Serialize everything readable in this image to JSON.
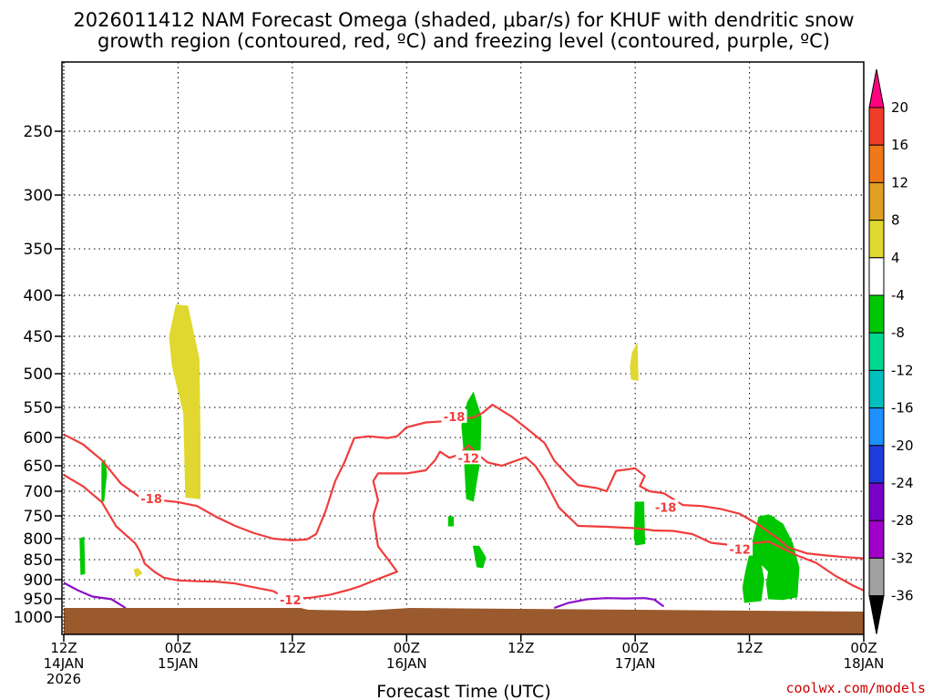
{
  "chart_data": {
    "type": "heatmap",
    "title_lines": [
      "2026011412 NAM Forecast Omega (shaded, μbar/s) for KHUF with dendritic snow",
      "growth region (contoured, red, ºC) and freezing level (contoured, purple, ºC)"
    ],
    "xlabel": "Forecast Time (UTC)",
    "credit": "coolwx.com/models",
    "x_range_hours": [
      0,
      84
    ],
    "y_axis": {
      "scale": "pressure",
      "range_hpa": [
        1000,
        200
      ],
      "ticks": [
        "250",
        "300",
        "350",
        "400",
        "450",
        "500",
        "550",
        "600",
        "650",
        "700",
        "750",
        "800",
        "850",
        "900",
        "950",
        "1000"
      ]
    },
    "x_ticks": [
      {
        "hour": 0,
        "line1": "12Z",
        "line2": "14JAN",
        "line3": "2026"
      },
      {
        "hour": 12,
        "line1": "00Z",
        "line2": "15JAN",
        "line3": ""
      },
      {
        "hour": 24,
        "line1": "12Z",
        "line2": "",
        "line3": ""
      },
      {
        "hour": 36,
        "line1": "00Z",
        "line2": "16JAN",
        "line3": ""
      },
      {
        "hour": 48,
        "line1": "12Z",
        "line2": "",
        "line3": ""
      },
      {
        "hour": 60,
        "line1": "00Z",
        "line2": "17JAN",
        "line3": ""
      },
      {
        "hour": 72,
        "line1": "12Z",
        "line2": "",
        "line3": ""
      },
      {
        "hour": 84,
        "line1": "00Z",
        "line2": "18JAN",
        "line3": ""
      }
    ],
    "colorbar": {
      "labels": [
        "20",
        "16",
        "12",
        "8",
        "4",
        "-4",
        "-8",
        "-12",
        "-16",
        "-20",
        "-24",
        "-28",
        "-32",
        "-36"
      ],
      "colors": [
        "#ff0080",
        "#f03c28",
        "#f07818",
        "#e0a020",
        "#e0d830",
        "#ffffff",
        "#00c800",
        "#00d890",
        "#00c0c0",
        "#1e90ff",
        "#1e3cdc",
        "#7800c8",
        "#a000c8",
        "#a0a0a0",
        "#000000"
      ]
    },
    "contour_labels": [
      {
        "text": "-18",
        "hour": 9.2,
        "hpa": 715
      },
      {
        "text": "-12",
        "hour": 23.8,
        "hpa": 952
      },
      {
        "text": "-18",
        "hour": 41.0,
        "hpa": 565
      },
      {
        "text": "-12",
        "hour": 42.5,
        "hpa": 636
      },
      {
        "text": "-18",
        "hour": 63.2,
        "hpa": 732
      },
      {
        "text": "-12",
        "hour": 71.0,
        "hpa": 825
      }
    ],
    "contours": {
      "minus18": [
        [
          0,
          595
        ],
        [
          2,
          612
        ],
        [
          4,
          640
        ],
        [
          6,
          685
        ],
        [
          8,
          712
        ],
        [
          10,
          718
        ],
        [
          12,
          722
        ],
        [
          14,
          730
        ],
        [
          16,
          752
        ],
        [
          18,
          772
        ],
        [
          20,
          788
        ],
        [
          22,
          800
        ],
        [
          24,
          804
        ],
        [
          25.5,
          802
        ],
        [
          26.5,
          790
        ],
        [
          27.5,
          740
        ],
        [
          28.5,
          680
        ],
        [
          29.5,
          643
        ],
        [
          30.5,
          601
        ],
        [
          32,
          598
        ],
        [
          34,
          601
        ],
        [
          35,
          598
        ],
        [
          36,
          583
        ],
        [
          38,
          575
        ],
        [
          40,
          573
        ],
        [
          42,
          568
        ],
        [
          43,
          567
        ],
        [
          44,
          559
        ],
        [
          45,
          546
        ],
        [
          47,
          565
        ],
        [
          49,
          590
        ],
        [
          50.5,
          610
        ],
        [
          51.5,
          641
        ],
        [
          53,
          670
        ],
        [
          54,
          688
        ],
        [
          56,
          694
        ],
        [
          57,
          700
        ],
        [
          58,
          660
        ],
        [
          60,
          655
        ],
        [
          61,
          670
        ],
        [
          60.5,
          690
        ],
        [
          61.5,
          700
        ],
        [
          63,
          704
        ],
        [
          65,
          728
        ],
        [
          67,
          730
        ],
        [
          69,
          736
        ],
        [
          71,
          746
        ],
        [
          73,
          770
        ],
        [
          75,
          800
        ],
        [
          76,
          820
        ],
        [
          78,
          835
        ],
        [
          80,
          840
        ],
        [
          82,
          844
        ],
        [
          84,
          847
        ]
      ],
      "minus12": [
        [
          0,
          668
        ],
        [
          2,
          690
        ],
        [
          4,
          722
        ],
        [
          5.5,
          773
        ],
        [
          7.5,
          811
        ],
        [
          8,
          830
        ],
        [
          8.5,
          860
        ],
        [
          9.5,
          880
        ],
        [
          10.5,
          895
        ],
        [
          12,
          902
        ],
        [
          14,
          904
        ],
        [
          16,
          905
        ],
        [
          18,
          910
        ],
        [
          20,
          920
        ],
        [
          22,
          930
        ],
        [
          23,
          944
        ],
        [
          24,
          950
        ],
        [
          26,
          947
        ],
        [
          28,
          939
        ],
        [
          30,
          926
        ],
        [
          31,
          918
        ],
        [
          32.5,
          903
        ],
        [
          35,
          880
        ],
        [
          34,
          848
        ],
        [
          33,
          818
        ],
        [
          32.5,
          750
        ],
        [
          33,
          718
        ],
        [
          32.5,
          680
        ],
        [
          33,
          665
        ],
        [
          36,
          665
        ],
        [
          38,
          659
        ],
        [
          39,
          640
        ],
        [
          39.5,
          625
        ],
        [
          40.5,
          636
        ],
        [
          41.5,
          630
        ],
        [
          42.5,
          614
        ],
        [
          43.5,
          630
        ],
        [
          44.5,
          644
        ],
        [
          46,
          650
        ],
        [
          48.5,
          635
        ],
        [
          49.5,
          650
        ],
        [
          50.5,
          678
        ],
        [
          52,
          733
        ],
        [
          54,
          772
        ],
        [
          57,
          774
        ],
        [
          60,
          777
        ],
        [
          62,
          782
        ],
        [
          64,
          783
        ],
        [
          66,
          790
        ],
        [
          68,
          810
        ],
        [
          70,
          815
        ],
        [
          72,
          812
        ],
        [
          74,
          807
        ],
        [
          75,
          818
        ],
        [
          77,
          840
        ],
        [
          79,
          858
        ],
        [
          81,
          890
        ],
        [
          83,
          917
        ],
        [
          84,
          928
        ]
      ],
      "freezing_left": [
        [
          0,
          908
        ],
        [
          1.5,
          928
        ],
        [
          3,
          944
        ],
        [
          5,
          951
        ],
        [
          6.5,
          975
        ]
      ],
      "freezing_right": [
        [
          51.5,
          975
        ],
        [
          53,
          961
        ],
        [
          55,
          951
        ],
        [
          57,
          948
        ],
        [
          59,
          949
        ],
        [
          61,
          948
        ],
        [
          62,
          952
        ],
        [
          63,
          971
        ]
      ]
    },
    "omega_regions": [
      {
        "category": "4 to 8",
        "color": "#e0d830",
        "outline": [
          [
            11.8,
            412
          ],
          [
            13.0,
            413
          ],
          [
            14.2,
            480
          ],
          [
            14.3,
            590
          ],
          [
            14.3,
            715
          ],
          [
            12.8,
            712
          ],
          [
            12.6,
            560
          ],
          [
            11.4,
            490
          ],
          [
            11.1,
            450
          ]
        ]
      },
      {
        "category": "4 to 8",
        "color": "#e0d830",
        "outline": [
          [
            7.4,
            875
          ],
          [
            7.8,
            872
          ],
          [
            8.2,
            884
          ],
          [
            7.6,
            893
          ]
        ]
      },
      {
        "category": "4 to 8",
        "color": "#e0d830",
        "outline": [
          [
            59.7,
            472
          ],
          [
            60.2,
            460
          ],
          [
            60.3,
            510
          ],
          [
            59.6,
            508
          ],
          [
            59.5,
            490
          ]
        ]
      },
      {
        "category": "-4 to -8",
        "color": "#00c800",
        "outline": [
          [
            1.7,
            800
          ],
          [
            2.1,
            797
          ],
          [
            2.2,
            885
          ],
          [
            1.8,
            887
          ]
        ]
      },
      {
        "category": "-4 to -8",
        "color": "#00c800",
        "outline": [
          [
            4.0,
            645
          ],
          [
            4.3,
            640
          ],
          [
            4.5,
            665
          ],
          [
            4.2,
            720
          ],
          [
            4.0,
            720
          ]
        ]
      },
      {
        "category": "-4 to -8",
        "color": "#00c800",
        "outline": [
          [
            42.4,
            542
          ],
          [
            43.0,
            528
          ],
          [
            43.8,
            565
          ],
          [
            43.7,
            640
          ],
          [
            43.0,
            720
          ],
          [
            42.3,
            715
          ],
          [
            42.0,
            620
          ],
          [
            41.8,
            580
          ]
        ]
      },
      {
        "category": "-4 to -8",
        "color": "#00c800",
        "outline": [
          [
            40.4,
            752
          ],
          [
            40.9,
            752
          ],
          [
            40.9,
            772
          ],
          [
            40.4,
            772
          ]
        ]
      },
      {
        "category": "-4 to -8",
        "color": "#00c800",
        "outline": [
          [
            43.0,
            818
          ],
          [
            43.6,
            818
          ],
          [
            44.3,
            845
          ],
          [
            44.0,
            870
          ],
          [
            43.4,
            868
          ]
        ]
      },
      {
        "category": "-4 to -8",
        "color": "#00c800",
        "outline": [
          [
            60.0,
            722
          ],
          [
            60.9,
            722
          ],
          [
            61.0,
            812
          ],
          [
            60.1,
            815
          ],
          [
            59.9,
            800
          ]
        ]
      },
      {
        "category": "-4 to -8",
        "color": "#00c800",
        "outline": [
          [
            73.0,
            752
          ],
          [
            74.0,
            748
          ],
          [
            75.5,
            768
          ],
          [
            76.5,
            810
          ],
          [
            77.2,
            870
          ],
          [
            77.0,
            945
          ],
          [
            75.5,
            952
          ],
          [
            74.0,
            950
          ],
          [
            73.8,
            910
          ],
          [
            74.0,
            880
          ],
          [
            73.2,
            860
          ],
          [
            73.5,
            900
          ],
          [
            73.2,
            955
          ],
          [
            71.5,
            960
          ],
          [
            71.3,
            920
          ],
          [
            71.6,
            880
          ],
          [
            72.3,
            810
          ]
        ]
      },
      {
        "category": "-4 to -8",
        "color": "#00c800",
        "outline": [
          [
            73.4,
            752
          ],
          [
            74.6,
            752
          ],
          [
            74.8,
            778
          ],
          [
            74.1,
            790
          ],
          [
            73.5,
            780
          ]
        ]
      }
    ],
    "surface": {
      "color": "#9b5a2e",
      "band_hpa": [
        975,
        1020
      ]
    }
  }
}
